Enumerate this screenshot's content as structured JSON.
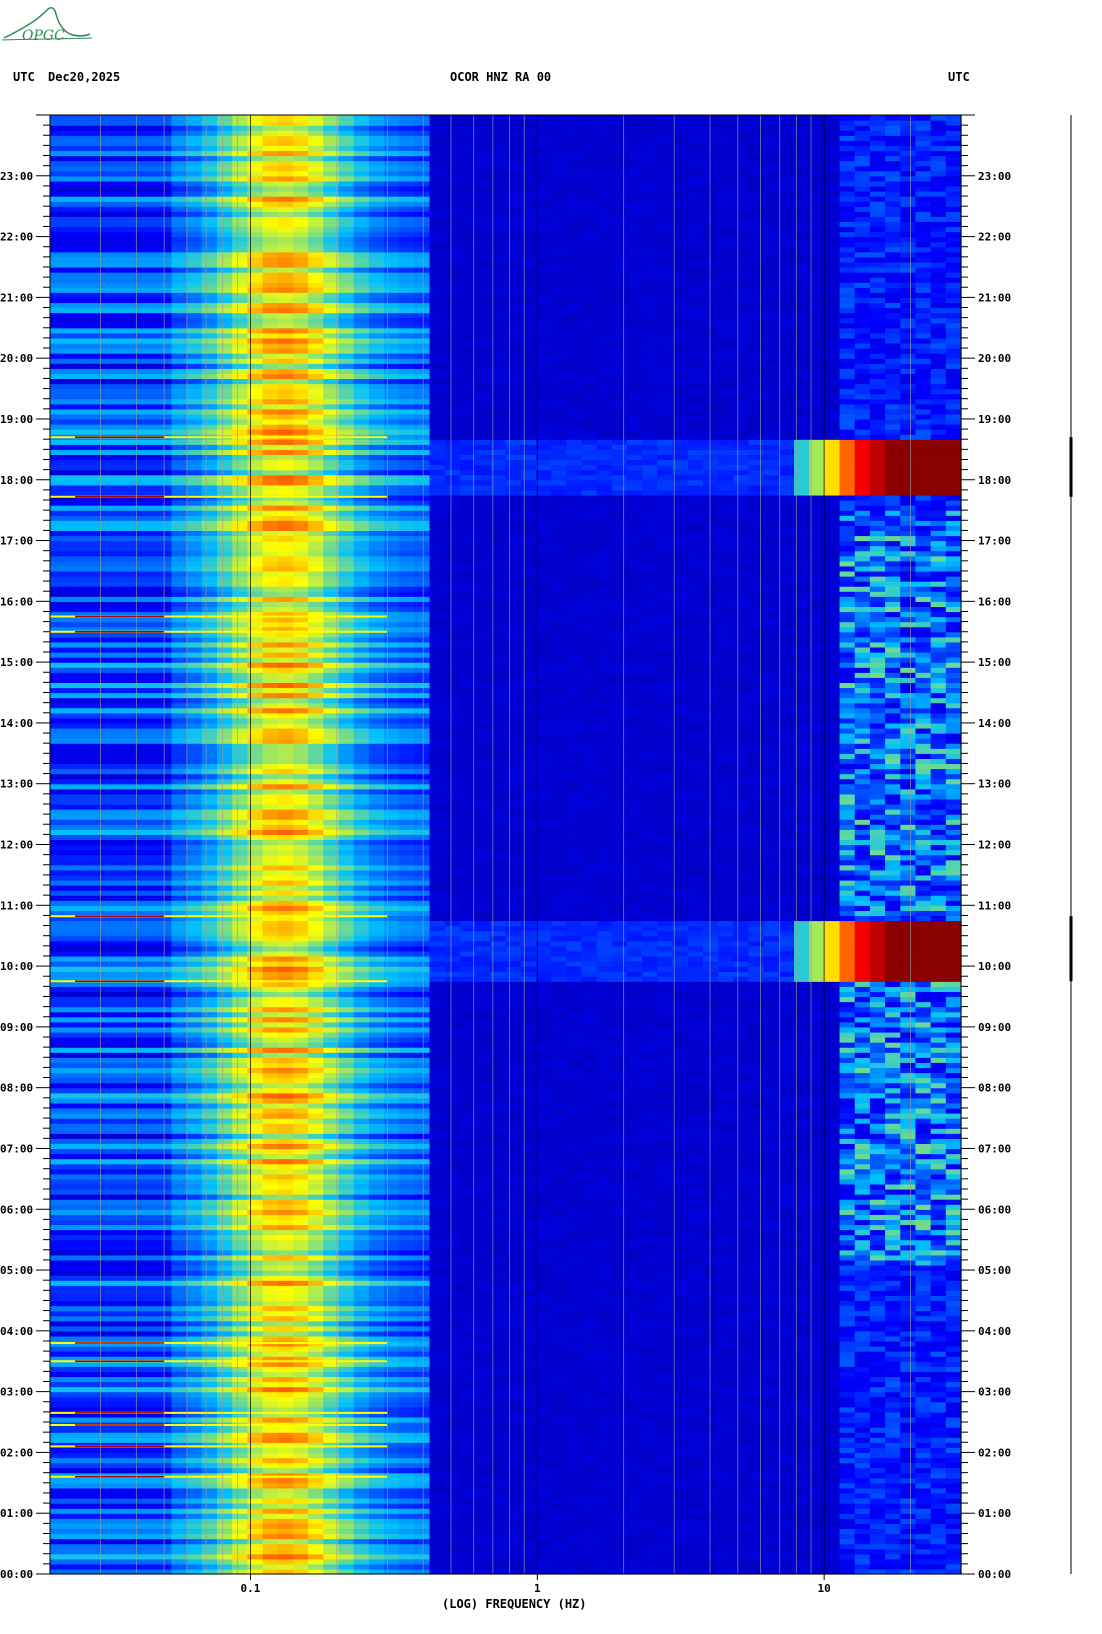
{
  "header": {
    "left_utc": "UTC",
    "date": "Dec20,2025",
    "station": "OCOR HNZ RA 00",
    "right_utc": "UTC"
  },
  "logo": {
    "text": "OPGC",
    "color": "#2e8b57"
  },
  "chart_data": {
    "type": "heatmap",
    "title": "OCOR HNZ RA 00",
    "xlabel": "(LOG) FREQUENCY (HZ)",
    "ylabel": "",
    "x_scale": "log",
    "xlim": [
      0.02,
      30
    ],
    "x_ticks": [
      {
        "value": 0.1,
        "label": "0.1"
      },
      {
        "value": 1,
        "label": "1"
      },
      {
        "value": 10,
        "label": "10"
      }
    ],
    "ylim_hours_utc": [
      0,
      24
    ],
    "y_ticks": [
      "00:00",
      "01:00",
      "02:00",
      "03:00",
      "04:00",
      "05:00",
      "06:00",
      "07:00",
      "08:00",
      "09:00",
      "10:00",
      "11:00",
      "12:00",
      "13:00",
      "14:00",
      "15:00",
      "16:00",
      "17:00",
      "18:00",
      "19:00",
      "20:00",
      "21:00",
      "22:00",
      "23:00"
    ],
    "colormap": [
      "#00008b",
      "#0000ff",
      "#00bfff",
      "#ffff00",
      "#ff0000",
      "#8b0000"
    ],
    "background_power": {
      "peak_frequency_hz": 0.13,
      "description_levels": "microseism band high, low power above 0.4 Hz, noise bursts near 15-30 Hz"
    },
    "events": [
      {
        "start_hour": 9.75,
        "end_hour": 10.82,
        "min_frequency_hz": 8,
        "intensity": 1.0
      },
      {
        "start_hour": 17.72,
        "end_hour": 18.7,
        "min_frequency_hz": 8,
        "intensity": 1.0
      }
    ],
    "bright_lines_hours": [
      1.6,
      2.1,
      2.45,
      2.65,
      3.5,
      3.8,
      9.75,
      10.82,
      15.5,
      15.75,
      17.72,
      18.7
    ],
    "grid": true
  }
}
